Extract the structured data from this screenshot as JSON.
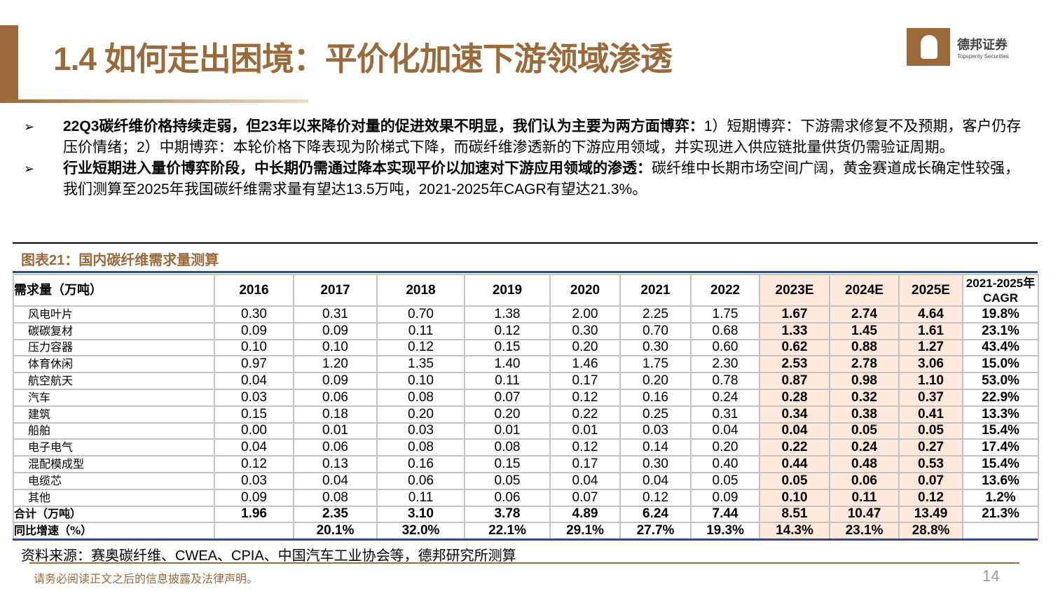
{
  "header": {
    "title": "1.4 如何走出困境：平价化加速下游领域渗透",
    "logo_cn": "德邦证券",
    "logo_en": "Topsperity Securities"
  },
  "bullets": [
    {
      "bold": "22Q3碳纤维价格持续走弱，但23年以来降价对量的促进效果不明显，我们认为主要为两方面博弈：",
      "text": "1）短期博弈：下游需求修复不及预期，客户仍存压价情绪；2）中期博弈：本轮价格下降表现为阶梯式下降，而碳纤维渗透新的下游应用领域，并实现进入供应链批量供货仍需验证周期。"
    },
    {
      "bold": "行业短期进入量价博弈阶段，中长期仍需通过降本实现平价以加速对下游应用领域的渗透：",
      "text": "碳纤维中长期市场空间广阔，黄金赛道成长确定性较强，我们测算至2025年我国碳纤维需求量有望达13.5万吨，2021-2025年CAGR有望达21.3%。"
    }
  ],
  "figure": {
    "title": "图表21：国内碳纤维需求量测算",
    "columns": [
      "需求量（万吨）",
      "2016",
      "2017",
      "2018",
      "2019",
      "2020",
      "2021",
      "2022",
      "2023E",
      "2024E",
      "2025E",
      "2021-2025年 CAGR"
    ],
    "rows": [
      [
        "风电叶片",
        "0.30",
        "0.31",
        "0.70",
        "1.38",
        "2.00",
        "2.25",
        "1.75",
        "1.67",
        "2.74",
        "4.64",
        "19.8%"
      ],
      [
        "碳碳复材",
        "0.09",
        "0.09",
        "0.11",
        "0.12",
        "0.30",
        "0.70",
        "0.68",
        "1.33",
        "1.45",
        "1.61",
        "23.1%"
      ],
      [
        "压力容器",
        "0.10",
        "0.10",
        "0.12",
        "0.15",
        "0.20",
        "0.30",
        "0.60",
        "0.62",
        "0.88",
        "1.27",
        "43.4%"
      ],
      [
        "体育休闲",
        "0.97",
        "1.20",
        "1.35",
        "1.40",
        "1.46",
        "1.75",
        "2.30",
        "2.53",
        "2.78",
        "3.06",
        "15.0%"
      ],
      [
        "航空航天",
        "0.04",
        "0.09",
        "0.10",
        "0.11",
        "0.17",
        "0.20",
        "0.78",
        "0.87",
        "0.98",
        "1.10",
        "53.0%"
      ],
      [
        "汽车",
        "0.03",
        "0.06",
        "0.08",
        "0.07",
        "0.12",
        "0.16",
        "0.24",
        "0.28",
        "0.32",
        "0.37",
        "22.9%"
      ],
      [
        "建筑",
        "0.15",
        "0.18",
        "0.20",
        "0.20",
        "0.22",
        "0.25",
        "0.31",
        "0.34",
        "0.38",
        "0.41",
        "13.3%"
      ],
      [
        "船舶",
        "0.00",
        "0.01",
        "0.03",
        "0.01",
        "0.01",
        "0.03",
        "0.04",
        "0.04",
        "0.05",
        "0.05",
        "15.4%"
      ],
      [
        "电子电气",
        "0.04",
        "0.06",
        "0.08",
        "0.08",
        "0.12",
        "0.14",
        "0.20",
        "0.22",
        "0.24",
        "0.27",
        "17.4%"
      ],
      [
        "混配模成型",
        "0.12",
        "0.13",
        "0.16",
        "0.15",
        "0.17",
        "0.30",
        "0.40",
        "0.44",
        "0.48",
        "0.53",
        "15.4%"
      ],
      [
        "电缆芯",
        "0.03",
        "0.04",
        "0.06",
        "0.05",
        "0.04",
        "0.04",
        "0.05",
        "0.05",
        "0.06",
        "0.07",
        "13.6%"
      ],
      [
        "其他",
        "0.09",
        "0.08",
        "0.11",
        "0.06",
        "0.07",
        "0.12",
        "0.09",
        "0.10",
        "0.11",
        "0.12",
        "1.2%"
      ],
      [
        "合计（万吨）",
        "1.96",
        "2.35",
        "3.10",
        "3.78",
        "4.89",
        "6.24",
        "7.44",
        "8.51",
        "10.47",
        "13.49",
        "21.3%"
      ],
      [
        "同比增速（%）",
        "",
        "20.1%",
        "32.0%",
        "22.1%",
        "29.1%",
        "27.7%",
        "19.3%",
        "14.3%",
        "23.1%",
        "28.8%",
        ""
      ]
    ],
    "source": "资料来源：赛奥碳纤维、CWEA、CPIA、中国汽车工业协会等，德邦研究所测算"
  },
  "footer": {
    "disclaimer": "请务必阅读正文之后的信息披露及法律声明。",
    "page": "14"
  },
  "colors": {
    "brand": "#9a6a3a",
    "estimate_bg": "#fce9db",
    "rule": "#1f4e9c"
  }
}
